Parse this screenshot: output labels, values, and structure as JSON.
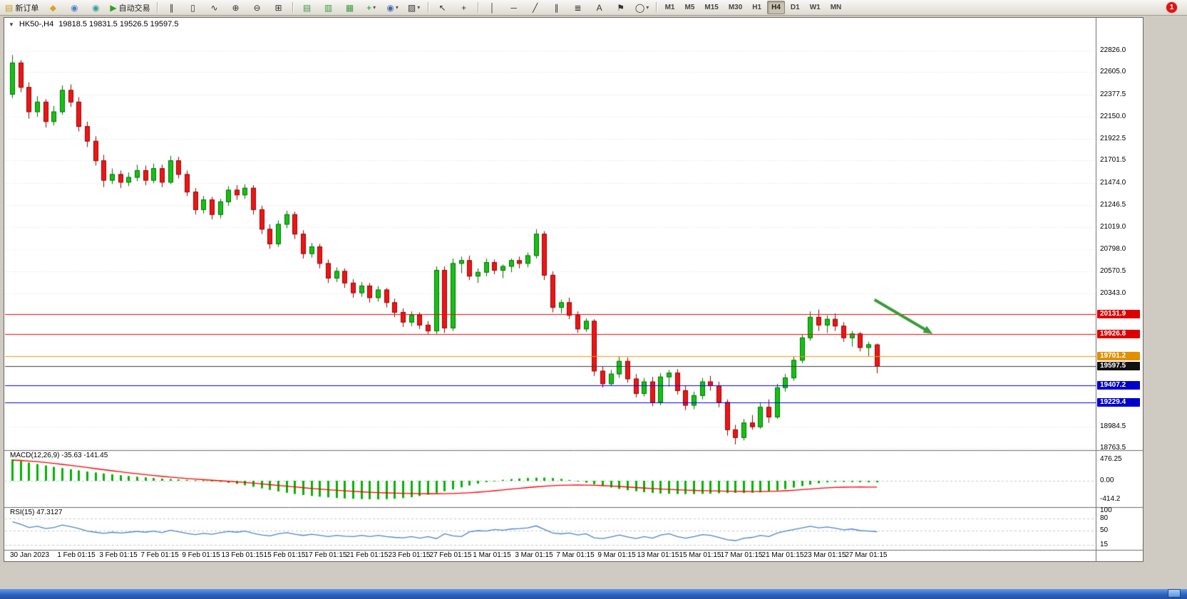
{
  "toolbar": {
    "notification_badge": "1",
    "timeframes": [
      "M1",
      "M5",
      "M15",
      "M30",
      "H1",
      "H4",
      "D1",
      "W1",
      "MN"
    ],
    "active_timeframe": "H4",
    "items": [
      {
        "name": "new-order-button",
        "glyph": "▤",
        "glyph_color": "#c8a028",
        "label": "新订单"
      },
      {
        "name": "market-watch-button",
        "glyph": "◆",
        "glyph_color": "#d9a520"
      },
      {
        "name": "data-window-button",
        "glyph": "◉",
        "glyph_color": "#4f81c7"
      },
      {
        "name": "navigator-button",
        "glyph": "◉",
        "glyph_color": "#2fa39b"
      },
      {
        "name": "autotrade-button",
        "glyph": "▶",
        "glyph_color": "#2e9e2e",
        "label": "自动交易"
      },
      {
        "sep": true
      },
      {
        "name": "bar-chart-button",
        "glyph": "∥"
      },
      {
        "name": "candlestick-chart-button",
        "glyph": "▯"
      },
      {
        "name": "line-chart-button",
        "glyph": "∿"
      },
      {
        "name": "zoom-in-button",
        "glyph": "⊕"
      },
      {
        "name": "zoom-out-button",
        "glyph": "⊖"
      },
      {
        "name": "tile-windows-button",
        "glyph": "⊞"
      },
      {
        "sep": true
      },
      {
        "name": "chart-arrange-1-button",
        "glyph": "▤",
        "glyph_color": "#3f9b3f"
      },
      {
        "name": "chart-arrange-2-button",
        "glyph": "▥",
        "glyph_color": "#3f9b3f"
      },
      {
        "name": "chart-arrange-3-button",
        "glyph": "▦",
        "glyph_color": "#3f9b3f"
      },
      {
        "name": "indicators-button",
        "glyph": "+",
        "glyph_color": "#1f8f1f",
        "dropdown": true
      },
      {
        "name": "periods-button",
        "glyph": "◉",
        "glyph_color": "#4668a8",
        "dropdown": true
      },
      {
        "name": "templates-button",
        "glyph": "▨",
        "dropdown": true
      },
      {
        "sep": true
      },
      {
        "name": "cursor-button",
        "glyph": "↖"
      },
      {
        "name": "crosshair-button",
        "glyph": "+"
      },
      {
        "sep": true
      },
      {
        "name": "vertical-line-button",
        "glyph": "│"
      },
      {
        "name": "horizontal-line-button",
        "glyph": "─"
      },
      {
        "name": "trendline-button",
        "glyph": "╱"
      },
      {
        "name": "channel-button",
        "glyph": "∥"
      },
      {
        "name": "fibonacci-button",
        "glyph": "≣"
      },
      {
        "name": "text-button",
        "glyph": "A"
      },
      {
        "name": "label-button",
        "glyph": "⚑"
      },
      {
        "name": "shapes-button",
        "glyph": "◯",
        "dropdown": true
      },
      {
        "sep": true
      }
    ]
  },
  "chart": {
    "collapse_icon": "▼",
    "symbol_period": "HK50-,H4",
    "ohlc_text": "19818.5 19831.5 19526.5 19597.5",
    "price_axis": [
      "22826.0",
      "22605.0",
      "22377.5",
      "22150.0",
      "21922.5",
      "21701.5",
      "21474.0",
      "21246.5",
      "21019.0",
      "20798.0",
      "20570.5",
      "20343.0",
      "18984.5",
      "18763.5"
    ],
    "price_lines": [
      {
        "value": 20131.9,
        "label": "20131.9",
        "color": "#ff0000",
        "badge": "#dd0000"
      },
      {
        "value": 19926.8,
        "label": "19926.8",
        "color": "#ff0000",
        "badge": "#dd0000"
      },
      {
        "value": 19701.2,
        "label": "19701.2",
        "color": "#ff9500",
        "badge": "#e09000"
      },
      {
        "value": 19597.5,
        "label": "19597.5",
        "color": "#3c3c3c",
        "badge": "#111111"
      },
      {
        "value": 19407.2,
        "label": "19407.2",
        "color": "#0000ff",
        "badge": "#0000cc"
      },
      {
        "value": 19229.4,
        "label": "19229.4",
        "color": "#0000ff",
        "badge": "#0000cc"
      }
    ],
    "time_axis": [
      "30 Jan 2023",
      "1 Feb 01:15",
      "3 Feb 01:15",
      "7 Feb 01:15",
      "9 Feb 01:15",
      "13 Feb 01:15",
      "15 Feb 01:15",
      "17 Feb 01:15",
      "21 Feb 01:15",
      "23 Feb 01:15",
      "27 Feb 01:15",
      "1 Mar 01:15",
      "3 Mar 01:15",
      "7 Mar 01:15",
      "9 Mar 01:15",
      "13 Mar 01:15",
      "15 Mar 01:15",
      "17 Mar 01:15",
      "21 Mar 01:15",
      "23 Mar 01:15",
      "27 Mar 01:15"
    ],
    "colors": {
      "bull": "#12c412",
      "bull_border": "#056e05",
      "bear": "#f11414",
      "bear_border": "#8e0606",
      "macd_hist": "#00b400",
      "macd_signal": "#ff0000",
      "rsi_line": "#4a86c8",
      "grid": "#e2e2e2",
      "arrow": "#3a9b3a"
    }
  },
  "chart_data": {
    "type": "candlestick",
    "symbol": "HK50-",
    "timeframe": "H4",
    "ohlc_current": {
      "open": 19818.5,
      "high": 19831.5,
      "low": 19526.5,
      "close": 19597.5
    },
    "ylim": [
      18749,
      23161
    ],
    "candles": [
      [
        22380,
        22780,
        22340,
        22700
      ],
      [
        22700,
        22730,
        22400,
        22450
      ],
      [
        22450,
        22500,
        22130,
        22200
      ],
      [
        22200,
        22360,
        22150,
        22300
      ],
      [
        22300,
        22330,
        22040,
        22100
      ],
      [
        22100,
        22260,
        22060,
        22200
      ],
      [
        22200,
        22470,
        22170,
        22420
      ],
      [
        22420,
        22480,
        22250,
        22300
      ],
      [
        22300,
        22350,
        22000,
        22050
      ],
      [
        22050,
        22100,
        21840,
        21900
      ],
      [
        21900,
        21950,
        21650,
        21700
      ],
      [
        21700,
        21760,
        21430,
        21500
      ],
      [
        21500,
        21620,
        21460,
        21560
      ],
      [
        21560,
        21600,
        21420,
        21480
      ],
      [
        21480,
        21580,
        21440,
        21530
      ],
      [
        21530,
        21660,
        21490,
        21600
      ],
      [
        21600,
        21650,
        21450,
        21500
      ],
      [
        21500,
        21670,
        21470,
        21620
      ],
      [
        21620,
        21660,
        21430,
        21480
      ],
      [
        21480,
        21750,
        21460,
        21700
      ],
      [
        21700,
        21740,
        21520,
        21560
      ],
      [
        21560,
        21600,
        21340,
        21380
      ],
      [
        21380,
        21420,
        21150,
        21200
      ],
      [
        21200,
        21340,
        21160,
        21300
      ],
      [
        21300,
        21330,
        21100,
        21150
      ],
      [
        21150,
        21310,
        21110,
        21280
      ],
      [
        21280,
        21440,
        21240,
        21400
      ],
      [
        21400,
        21450,
        21300,
        21350
      ],
      [
        21350,
        21460,
        21310,
        21420
      ],
      [
        21420,
        21450,
        21150,
        21200
      ],
      [
        21200,
        21240,
        20950,
        21000
      ],
      [
        21000,
        21050,
        20800,
        20850
      ],
      [
        20850,
        21090,
        20820,
        21050
      ],
      [
        21050,
        21190,
        21010,
        21150
      ],
      [
        21150,
        21180,
        20900,
        20950
      ],
      [
        20950,
        20990,
        20700,
        20750
      ],
      [
        20750,
        20860,
        20710,
        20820
      ],
      [
        20820,
        20850,
        20600,
        20650
      ],
      [
        20650,
        20690,
        20450,
        20500
      ],
      [
        20500,
        20610,
        20460,
        20570
      ],
      [
        20570,
        20600,
        20400,
        20450
      ],
      [
        20450,
        20490,
        20300,
        20350
      ],
      [
        20350,
        20460,
        20310,
        20420
      ],
      [
        20420,
        20450,
        20250,
        20300
      ],
      [
        20300,
        20420,
        20260,
        20380
      ],
      [
        20380,
        20400,
        20200,
        20250
      ],
      [
        20250,
        20290,
        20100,
        20150
      ],
      [
        20150,
        20190,
        20000,
        20050
      ],
      [
        20050,
        20160,
        20010,
        20120
      ],
      [
        20120,
        20150,
        19980,
        20020
      ],
      [
        20020,
        20060,
        19930,
        19960
      ],
      [
        19960,
        20620,
        19930,
        20580
      ],
      [
        20580,
        20620,
        19940,
        19990
      ],
      [
        19990,
        20700,
        19960,
        20650
      ],
      [
        20650,
        20720,
        20550,
        20680
      ],
      [
        20680,
        20730,
        20480,
        20520
      ],
      [
        20520,
        20600,
        20450,
        20560
      ],
      [
        20560,
        20700,
        20520,
        20660
      ],
      [
        20660,
        20690,
        20540,
        20580
      ],
      [
        20580,
        20640,
        20500,
        20620
      ],
      [
        20620,
        20700,
        20560,
        20680
      ],
      [
        20680,
        20720,
        20600,
        20650
      ],
      [
        20650,
        20760,
        20610,
        20730
      ],
      [
        20730,
        21000,
        20700,
        20950
      ],
      [
        20950,
        20980,
        20480,
        20530
      ],
      [
        20530,
        20570,
        20150,
        20200
      ],
      [
        20200,
        20280,
        20140,
        20250
      ],
      [
        20250,
        20300,
        20080,
        20120
      ],
      [
        20120,
        20160,
        19940,
        19980
      ],
      [
        19980,
        20090,
        19950,
        20060
      ],
      [
        20060,
        20080,
        19500,
        19550
      ],
      [
        19550,
        19600,
        19380,
        19420
      ],
      [
        19420,
        19560,
        19400,
        19520
      ],
      [
        19520,
        19700,
        19480,
        19650
      ],
      [
        19650,
        19690,
        19430,
        19470
      ],
      [
        19470,
        19520,
        19280,
        19320
      ],
      [
        19320,
        19480,
        19290,
        19440
      ],
      [
        19440,
        19490,
        19190,
        19230
      ],
      [
        19230,
        19530,
        19200,
        19490
      ],
      [
        19490,
        19560,
        19390,
        19530
      ],
      [
        19530,
        19570,
        19310,
        19350
      ],
      [
        19350,
        19400,
        19150,
        19200
      ],
      [
        19200,
        19340,
        19160,
        19300
      ],
      [
        19300,
        19480,
        19260,
        19440
      ],
      [
        19440,
        19500,
        19350,
        19400
      ],
      [
        19400,
        19440,
        19180,
        19230
      ],
      [
        19230,
        19260,
        18890,
        18950
      ],
      [
        18950,
        19000,
        18800,
        18870
      ],
      [
        18870,
        19060,
        18840,
        19020
      ],
      [
        19020,
        19100,
        18950,
        18980
      ],
      [
        18980,
        19230,
        18960,
        19180
      ],
      [
        19180,
        19260,
        19020,
        19080
      ],
      [
        19080,
        19420,
        19060,
        19380
      ],
      [
        19380,
        19520,
        19340,
        19480
      ],
      [
        19480,
        19700,
        19450,
        19660
      ],
      [
        19660,
        19920,
        19630,
        19890
      ],
      [
        19890,
        20160,
        19860,
        20100
      ],
      [
        20100,
        20180,
        19960,
        20020
      ],
      [
        20020,
        20120,
        19940,
        20080
      ],
      [
        20080,
        20140,
        19960,
        20010
      ],
      [
        20010,
        20050,
        19850,
        19890
      ],
      [
        19890,
        19960,
        19800,
        19930
      ],
      [
        19930,
        19950,
        19750,
        19790
      ],
      [
        19790,
        19850,
        19700,
        19820
      ],
      [
        19818.5,
        19831.5,
        19526.5,
        19597.5
      ]
    ],
    "annotations": [
      {
        "type": "arrow",
        "x1_index": 104,
        "price1": 20280,
        "x2_index": 111,
        "price2": 19930,
        "color": "#3a9b3a"
      }
    ]
  },
  "macd": {
    "label": "MACD(12,26,9) -35.63 -141.45",
    "axis": [
      "476.25",
      "0.00",
      "-414.2"
    ],
    "hist": [
      476,
      440,
      405,
      372,
      340,
      310,
      282,
      255,
      230,
      206,
      184,
      163,
      143,
      124,
      107,
      91,
      76,
      62,
      50,
      39,
      29,
      20,
      12,
      5,
      -8,
      -25,
      -45,
      -70,
      -100,
      -135,
      -170,
      -205,
      -238,
      -268,
      -295,
      -318,
      -338,
      -355,
      -370,
      -383,
      -394,
      -402,
      -408,
      -412,
      -414,
      -410,
      -400,
      -385,
      -365,
      -340,
      -310,
      -275,
      -235,
      -192,
      -148,
      -105,
      -65,
      -30,
      -2,
      20,
      38,
      52,
      62,
      68,
      70,
      60,
      42,
      18,
      -10,
      -42,
      -78,
      -115,
      -150,
      -182,
      -210,
      -234,
      -254,
      -270,
      -282,
      -290,
      -295,
      -297,
      -296,
      -292,
      -286,
      -278,
      -272,
      -270,
      -272,
      -268,
      -258,
      -240,
      -215,
      -185,
      -152,
      -118,
      -85,
      -55,
      -35,
      -25,
      -25,
      -28,
      -32,
      -34,
      -35.63
    ],
    "signal": [
      460,
      452,
      440,
      425,
      407,
      387,
      365,
      342,
      318,
      294,
      270,
      246,
      222,
      199,
      177,
      156,
      136,
      117,
      99,
      82,
      66,
      51,
      37,
      24,
      12,
      0,
      -12,
      -25,
      -39,
      -54,
      -70,
      -87,
      -104,
      -121,
      -138,
      -155,
      -171,
      -186,
      -200,
      -213,
      -225,
      -236,
      -246,
      -255,
      -263,
      -270,
      -276,
      -281,
      -285,
      -288,
      -290,
      -290,
      -288,
      -284,
      -277,
      -267,
      -254,
      -239,
      -222,
      -204,
      -186,
      -168,
      -151,
      -135,
      -121,
      -110,
      -102,
      -97,
      -95,
      -96,
      -100,
      -107,
      -116,
      -127,
      -139,
      -151,
      -163,
      -174,
      -184,
      -193,
      -201,
      -208,
      -214,
      -219,
      -223,
      -227,
      -231,
      -235,
      -238,
      -240,
      -240,
      -237,
      -231,
      -222,
      -211,
      -198,
      -184,
      -170,
      -158,
      -149,
      -143,
      -140,
      -139,
      -140,
      -141.45
    ]
  },
  "rsi": {
    "label": "RSI(15) 47.3127",
    "axis": [
      "100",
      "80",
      "50",
      "15"
    ],
    "levels": [
      80,
      50,
      15
    ],
    "values": [
      72,
      66,
      58,
      61,
      55,
      58,
      64,
      60,
      55,
      49,
      46,
      43,
      46,
      44,
      46,
      48,
      46,
      49,
      45,
      51,
      47,
      43,
      40,
      43,
      41,
      45,
      48,
      46,
      49,
      43,
      39,
      37,
      42,
      45,
      41,
      38,
      41,
      38,
      35,
      38,
      36,
      35,
      38,
      35,
      38,
      35,
      33,
      32,
      35,
      31,
      35,
      30,
      42,
      37,
      35,
      47,
      50,
      49,
      53,
      51,
      54,
      55,
      57,
      62,
      53,
      44,
      42,
      44,
      39,
      42,
      32,
      30,
      34,
      39,
      34,
      30,
      35,
      31,
      39,
      42,
      35,
      31,
      35,
      40,
      38,
      33,
      27,
      25,
      31,
      33,
      38,
      35,
      44,
      49,
      53,
      57,
      61,
      57,
      59,
      56,
      52,
      54,
      50,
      49,
      47.31
    ]
  }
}
